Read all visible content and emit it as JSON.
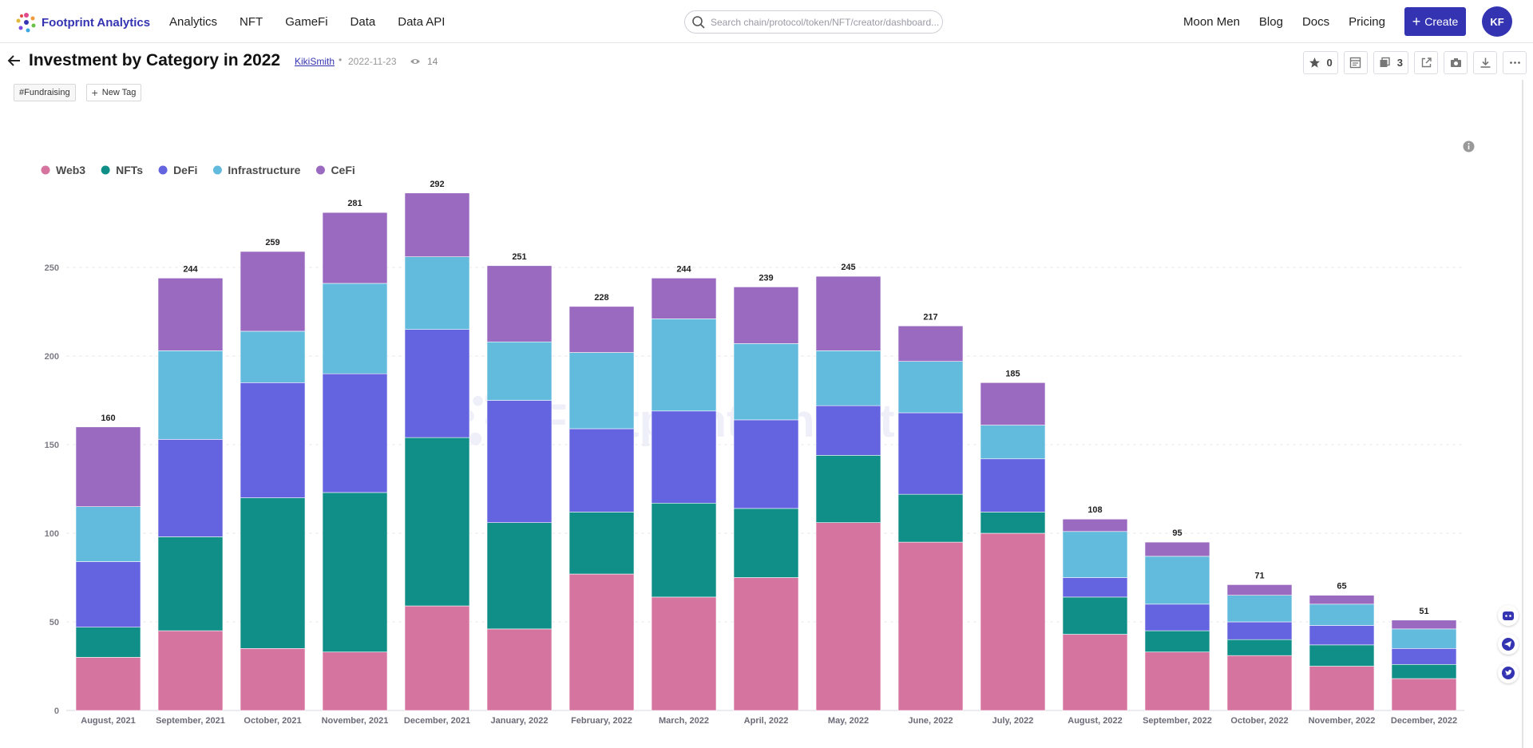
{
  "header": {
    "brand": "Footprint Analytics",
    "nav": [
      "Analytics",
      "NFT",
      "GameFi",
      "Data",
      "Data API"
    ],
    "search_placeholder": "Search chain/protocol/token/NFT/creator/dashboard...",
    "right_nav": [
      "Moon Men",
      "Blog",
      "Docs",
      "Pricing"
    ],
    "create_label": "Create",
    "avatar_initials": "KF"
  },
  "page": {
    "title": "Investment by Category in 2022",
    "author": "KikiSmith",
    "separator": "•",
    "date": "2022-11-23",
    "views": "14",
    "tags": [
      "#Fundraising"
    ],
    "new_tag_label": "New Tag"
  },
  "toolbar": {
    "star_count": "0",
    "copy_count": "3"
  },
  "watermark": "Footprint Analytics",
  "colors": {
    "brand": "#3434b2",
    "Web3": "#d5759f",
    "NFTs": "#108e88",
    "DeFi": "#6464e0",
    "Infrastructure": "#62bbdd",
    "CeFi": "#9a6ac0"
  },
  "chart_data": {
    "type": "bar",
    "stacked": true,
    "title": "",
    "xlabel": "",
    "ylabel": "",
    "ylim": [
      0,
      300
    ],
    "yticks": [
      0,
      50,
      100,
      150,
      200,
      250
    ],
    "grid": true,
    "legend_position": "top-left",
    "categories": [
      "August, 2021",
      "September, 2021",
      "October, 2021",
      "November, 2021",
      "December, 2021",
      "January, 2022",
      "February, 2022",
      "March, 2022",
      "April, 2022",
      "May, 2022",
      "June, 2022",
      "July, 2022",
      "August, 2022",
      "September, 2022",
      "October, 2022",
      "November, 2022",
      "December, 2022"
    ],
    "totals": [
      160,
      244,
      259,
      281,
      292,
      251,
      228,
      244,
      239,
      245,
      217,
      185,
      108,
      95,
      71,
      65,
      51
    ],
    "series": [
      {
        "name": "Web3",
        "color": "#d5759f",
        "values": [
          30,
          45,
          35,
          33,
          59,
          46,
          77,
          64,
          75,
          106,
          95,
          100,
          43,
          33,
          31,
          25,
          18
        ]
      },
      {
        "name": "NFTs",
        "color": "#108e88",
        "values": [
          17,
          53,
          85,
          90,
          95,
          60,
          35,
          53,
          39,
          38,
          27,
          12,
          21,
          12,
          9,
          12,
          8
        ]
      },
      {
        "name": "DeFi",
        "color": "#6464e0",
        "values": [
          37,
          55,
          65,
          67,
          61,
          69,
          47,
          52,
          50,
          28,
          46,
          30,
          11,
          15,
          10,
          11,
          9
        ]
      },
      {
        "name": "Infrastructure",
        "color": "#62bbdd",
        "values": [
          31,
          50,
          29,
          51,
          41,
          33,
          43,
          52,
          43,
          31,
          29,
          19,
          26,
          27,
          15,
          12,
          11
        ]
      },
      {
        "name": "CeFi",
        "color": "#9a6ac0",
        "values": [
          45,
          41,
          45,
          40,
          36,
          43,
          26,
          23,
          32,
          42,
          20,
          24,
          7,
          8,
          6,
          5,
          5
        ]
      }
    ]
  }
}
